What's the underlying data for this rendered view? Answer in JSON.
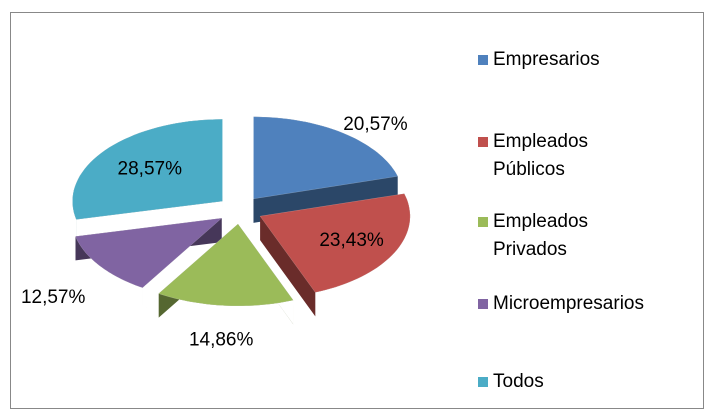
{
  "chart_data": {
    "type": "pie",
    "explode": true,
    "three_d": true,
    "categories": [
      "Empresarios",
      "Empleados Públicos",
      "Empleados Privados",
      "Microempresarios",
      "Todos"
    ],
    "values": [
      20.57,
      23.43,
      14.86,
      12.57,
      28.57
    ],
    "value_labels": [
      "20,57%",
      "23,43%",
      "14,86%",
      "12,57%",
      "28,57%"
    ],
    "colors": [
      "#4f81bd",
      "#c0504d",
      "#9bbb59",
      "#8064a2",
      "#4bacc6"
    ],
    "legend": "right"
  }
}
